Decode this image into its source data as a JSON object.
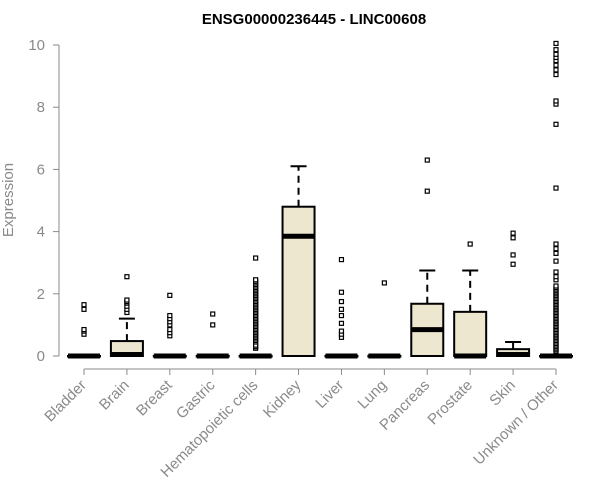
{
  "chart_data": {
    "type": "boxplot",
    "title": "ENSG00000236445 - LINC00608",
    "xlabel": "",
    "ylabel": "Expression",
    "ylim": [
      0,
      10
    ],
    "yticks": [
      0,
      2,
      4,
      6,
      8,
      10
    ],
    "grid": false,
    "legend": "none",
    "box_fill_color": "#ede7d0",
    "box_stroke_color": "#000000",
    "axis_color": "#8a8a8a",
    "categories": [
      "Bladder",
      "Brain",
      "Breast",
      "Gastric",
      "Hematopoietic cells",
      "Kidney",
      "Liver",
      "Lung",
      "Pancreas",
      "Prostate",
      "Skin",
      "Unknown / Other"
    ],
    "boxes": [
      {
        "q1": 0,
        "median": 0,
        "q3": 0,
        "whisker_low": 0,
        "whisker_high": 0,
        "outliers": [
          0.7,
          0.8,
          0.85,
          1.5,
          1.65
        ]
      },
      {
        "q1": 0,
        "median": 0.05,
        "q3": 0.48,
        "whisker_low": 0,
        "whisker_high": 1.2,
        "outliers": [
          1.4,
          1.5,
          1.6,
          1.7,
          1.75,
          1.8,
          2.55
        ]
      },
      {
        "q1": 0,
        "median": 0,
        "q3": 0,
        "whisker_low": 0,
        "whisker_high": 0,
        "outliers": [
          0.65,
          0.75,
          0.85,
          1.0,
          1.1,
          1.2,
          1.3,
          1.95
        ]
      },
      {
        "q1": 0,
        "median": 0,
        "q3": 0,
        "whisker_low": 0,
        "whisker_high": 0,
        "outliers": [
          1.0,
          1.35
        ]
      },
      {
        "q1": 0,
        "median": 0,
        "q3": 0,
        "whisker_low": 0,
        "whisker_high": 0,
        "outliers": [
          0.25,
          0.3,
          0.35,
          0.45,
          0.5,
          0.55,
          0.6,
          0.65,
          0.7,
          0.75,
          0.8,
          0.85,
          0.9,
          0.95,
          1.0,
          1.05,
          1.1,
          1.15,
          1.2,
          1.25,
          1.3,
          1.35,
          1.4,
          1.45,
          1.5,
          1.55,
          1.6,
          1.65,
          1.7,
          1.75,
          1.8,
          1.85,
          1.9,
          1.95,
          2.0,
          2.05,
          2.1,
          2.15,
          2.2,
          2.25,
          2.3,
          2.35,
          2.4,
          2.45,
          3.15
        ]
      },
      {
        "q1": 0,
        "median": 3.85,
        "q3": 4.8,
        "whisker_low": 0,
        "whisker_high": 6.1,
        "outliers": []
      },
      {
        "q1": 0,
        "median": 0,
        "q3": 0,
        "whisker_low": 0,
        "whisker_high": 0,
        "outliers": [
          0.6,
          0.7,
          0.8,
          1.05,
          1.3,
          1.5,
          1.75,
          2.05,
          3.1
        ]
      },
      {
        "q1": 0,
        "median": 0,
        "q3": 0,
        "whisker_low": 0,
        "whisker_high": 0,
        "outliers": [
          2.35
        ]
      },
      {
        "q1": 0,
        "median": 0.85,
        "q3": 1.68,
        "whisker_low": 0,
        "whisker_high": 2.75,
        "outliers": [
          5.3,
          6.3
        ]
      },
      {
        "q1": 0,
        "median": 0,
        "q3": 1.42,
        "whisker_low": 0,
        "whisker_high": 2.75,
        "outliers": [
          3.6
        ]
      },
      {
        "q1": 0,
        "median": 0.05,
        "q3": 0.22,
        "whisker_low": 0,
        "whisker_high": 0.45,
        "outliers": [
          2.95,
          3.25,
          3.8,
          3.95
        ]
      },
      {
        "q1": 0,
        "median": 0,
        "q3": 0,
        "whisker_low": 0,
        "whisker_high": 0,
        "outliers": [
          0.15,
          0.2,
          0.25,
          0.3,
          0.35,
          0.4,
          0.45,
          0.5,
          0.55,
          0.6,
          0.65,
          0.7,
          0.75,
          0.8,
          0.85,
          0.9,
          0.95,
          1.0,
          1.05,
          1.1,
          1.15,
          1.2,
          1.25,
          1.3,
          1.35,
          1.4,
          1.45,
          1.5,
          1.55,
          1.6,
          1.65,
          1.7,
          1.75,
          1.8,
          1.85,
          1.9,
          1.95,
          2.0,
          2.05,
          2.1,
          2.15,
          2.2,
          2.25,
          2.45,
          2.55,
          2.7,
          3.05,
          3.3,
          3.45,
          3.6,
          5.4,
          7.45,
          8.1,
          8.2,
          9.05,
          9.2,
          9.35,
          9.5,
          9.6,
          9.7,
          9.85,
          10.05
        ]
      }
    ]
  }
}
